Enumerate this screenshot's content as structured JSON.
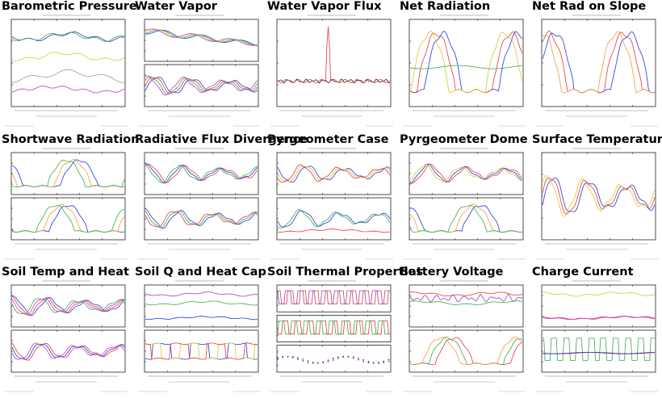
{
  "colors": {
    "background": "#ffffff",
    "plot_frame": "#000000",
    "blue": "#1f35d8",
    "red": "#e8343a",
    "green": "#3aa84a",
    "yellow": "#d6c62c",
    "orange": "#f29a3a",
    "purple": "#9b3fb5",
    "magenta": "#c13ac8",
    "gray": "#9a9a9a",
    "dark": "#222222"
  },
  "chart_data": [
    {
      "type": "line",
      "title": "Barometric Pressure",
      "panels": 1,
      "series": [
        {
          "color": "blue",
          "shape": "high-flat"
        },
        {
          "color": "green",
          "shape": "high-flat"
        },
        {
          "color": "yellow",
          "shape": "mid-flat"
        },
        {
          "color": "gray",
          "shape": "lowwave"
        },
        {
          "color": "magenta",
          "shape": "lowflat"
        }
      ]
    },
    {
      "type": "line",
      "title": "Water Vapor",
      "panels": 2,
      "series": [
        [
          {
            "color": "blue",
            "shape": "decline"
          },
          {
            "color": "green",
            "shape": "decline"
          },
          {
            "color": "yellow",
            "shape": "decline"
          },
          {
            "color": "magenta",
            "shape": "decline"
          }
        ],
        [
          {
            "color": "blue",
            "shape": "wavy"
          },
          {
            "color": "red",
            "shape": "wavy"
          },
          {
            "color": "green",
            "shape": "wavy"
          },
          {
            "color": "magenta",
            "shape": "wavy"
          }
        ]
      ]
    },
    {
      "type": "line",
      "title": "Water Vapor Flux",
      "panels": 1,
      "series": [
        {
          "color": "dark",
          "shape": "flatnoise"
        },
        {
          "color": "red",
          "shape": "spike"
        }
      ]
    },
    {
      "type": "line",
      "title": "Net Radiation",
      "panels": 1,
      "series": [
        {
          "color": "blue",
          "shape": "diurnal"
        },
        {
          "color": "red",
          "shape": "diurnal"
        },
        {
          "color": "yellow",
          "shape": "diurnal"
        },
        {
          "color": "green",
          "shape": "flatmid"
        }
      ]
    },
    {
      "type": "line",
      "title": "Net Rad on Slope",
      "panels": 1,
      "series": [
        {
          "color": "blue",
          "shape": "diurnal"
        },
        {
          "color": "red",
          "shape": "diurnal"
        },
        {
          "color": "orange",
          "shape": "diurnal"
        }
      ]
    },
    {
      "type": "line",
      "title": "Shortwave Radiation",
      "panels": 2,
      "series": [
        [
          {
            "color": "blue",
            "shape": "diurnal"
          },
          {
            "color": "orange",
            "shape": "diurnal"
          },
          {
            "color": "green",
            "shape": "diurnal"
          }
        ],
        [
          {
            "color": "blue",
            "shape": "diurnal"
          },
          {
            "color": "orange",
            "shape": "diurnal"
          },
          {
            "color": "green",
            "shape": "diurnal"
          }
        ]
      ]
    },
    {
      "type": "line",
      "title": "Radiative Flux Divergence",
      "panels": 2,
      "series": [
        [
          {
            "color": "red",
            "shape": "wavy"
          },
          {
            "color": "blue",
            "shape": "wavy"
          },
          {
            "color": "green",
            "shape": "wavy"
          }
        ],
        [
          {
            "color": "blue",
            "shape": "wavy"
          },
          {
            "color": "green",
            "shape": "wavy"
          },
          {
            "color": "red",
            "shape": "wavy"
          }
        ]
      ]
    },
    {
      "type": "line",
      "title": "Pyrgeometer Case",
      "panels": 2,
      "series": [
        [
          {
            "color": "blue",
            "shape": "wavy"
          },
          {
            "color": "yellow",
            "shape": "wavy"
          },
          {
            "color": "red",
            "shape": "wavy"
          }
        ],
        [
          {
            "color": "blue",
            "shape": "wavy"
          },
          {
            "color": "green",
            "shape": "wavy"
          },
          {
            "color": "red",
            "shape": "lowflat"
          }
        ]
      ]
    },
    {
      "type": "line",
      "title": "Pyrgeometer Dome",
      "panels": 2,
      "series": [
        [
          {
            "color": "red",
            "shape": "wavy"
          },
          {
            "color": "blue",
            "shape": "wavy"
          },
          {
            "color": "yellow",
            "shape": "wavy"
          }
        ],
        [
          {
            "color": "blue",
            "shape": "diurnal"
          },
          {
            "color": "orange",
            "shape": "diurnal"
          },
          {
            "color": "green",
            "shape": "diurnal"
          }
        ]
      ]
    },
    {
      "type": "line",
      "title": "Surface Temperature",
      "panels": 1,
      "series": [
        {
          "color": "blue",
          "shape": "wavy"
        },
        {
          "color": "red",
          "shape": "wavy"
        },
        {
          "color": "yellow",
          "shape": "wavy"
        }
      ]
    },
    {
      "type": "line",
      "title": "Soil Temp and Heat",
      "panels": 2,
      "series": [
        [
          {
            "color": "blue",
            "shape": "wavy"
          },
          {
            "color": "red",
            "shape": "wavy"
          },
          {
            "color": "magenta",
            "shape": "wavy"
          },
          {
            "color": "green",
            "shape": "wavy"
          }
        ],
        [
          {
            "color": "red",
            "shape": "wavy"
          },
          {
            "color": "blue",
            "shape": "wavy"
          },
          {
            "color": "magenta",
            "shape": "wavy"
          }
        ]
      ]
    },
    {
      "type": "line",
      "title": "Soil Q and Heat Cap",
      "panels": 2,
      "series": [
        [
          {
            "color": "purple",
            "shape": "high-flat"
          },
          {
            "color": "green",
            "shape": "mid-flat"
          },
          {
            "color": "blue",
            "shape": "lowflat"
          }
        ],
        [
          {
            "color": "blue",
            "shape": "steps"
          },
          {
            "color": "yellow",
            "shape": "steps"
          },
          {
            "color": "red",
            "shape": "steps"
          }
        ]
      ]
    },
    {
      "type": "line",
      "title": "Soil Thermal Properties",
      "panels": 3,
      "series": [
        [
          {
            "color": "red",
            "shape": "pulses"
          },
          {
            "color": "purple",
            "shape": "pulses"
          }
        ],
        [
          {
            "color": "red",
            "shape": "pulses"
          },
          {
            "color": "green",
            "shape": "pulses"
          }
        ],
        [
          {
            "color": "red",
            "shape": "dots"
          },
          {
            "color": "blue",
            "shape": "dots"
          }
        ]
      ]
    },
    {
      "type": "line",
      "title": "Battery Voltage",
      "panels": 2,
      "series": [
        [
          {
            "color": "purple",
            "shape": "noisyhigh"
          },
          {
            "color": "green",
            "shape": "mid-flat"
          },
          {
            "color": "red",
            "shape": "high-flat"
          }
        ],
        [
          {
            "color": "red",
            "shape": "diurnal"
          },
          {
            "color": "green",
            "shape": "diurnal"
          },
          {
            "color": "orange",
            "shape": "diurnal"
          }
        ]
      ]
    },
    {
      "type": "line",
      "title": "Charge Current",
      "panels": 2,
      "series": [
        [
          {
            "color": "yellow",
            "shape": "high-flat"
          },
          {
            "color": "red",
            "shape": "lowflat"
          },
          {
            "color": "magenta",
            "shape": "lowflat"
          }
        ],
        [
          {
            "color": "green",
            "shape": "pulses"
          },
          {
            "color": "red",
            "shape": "flatmid"
          },
          {
            "color": "blue",
            "shape": "flatmid"
          }
        ]
      ]
    }
  ]
}
